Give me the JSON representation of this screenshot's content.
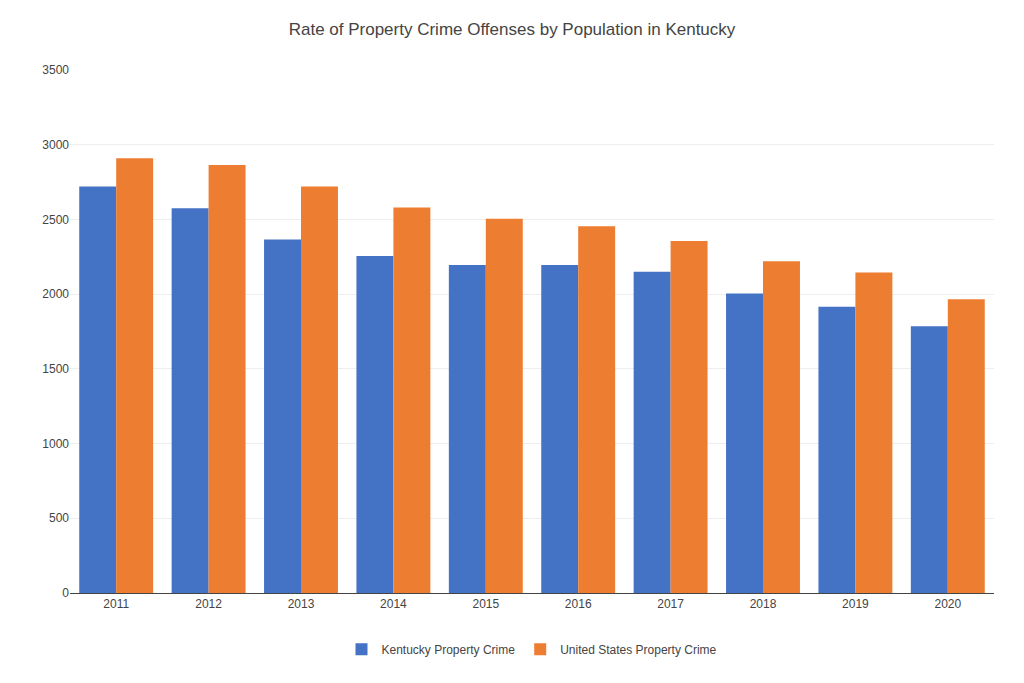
{
  "chart_data": {
    "type": "bar",
    "title": "Rate of Property Crime Offenses by Population in Kentucky",
    "categories": [
      "2011",
      "2012",
      "2013",
      "2014",
      "2015",
      "2016",
      "2017",
      "2018",
      "2019",
      "2020"
    ],
    "series": [
      {
        "name": "Kentucky Property Crime",
        "color": "#4472C4",
        "values": [
          2720,
          2575,
          2365,
          2255,
          2195,
          2195,
          2150,
          2005,
          1915,
          1785
        ]
      },
      {
        "name": "United States Property Crime",
        "color": "#ED7D31",
        "values": [
          2910,
          2865,
          2720,
          2580,
          2505,
          2455,
          2355,
          2220,
          2145,
          1965
        ]
      }
    ],
    "ylim": [
      0,
      3500
    ],
    "yticks": [
      0,
      500,
      1000,
      1500,
      2000,
      2500,
      3000,
      3500
    ],
    "grid": true,
    "legend": "bottom"
  }
}
